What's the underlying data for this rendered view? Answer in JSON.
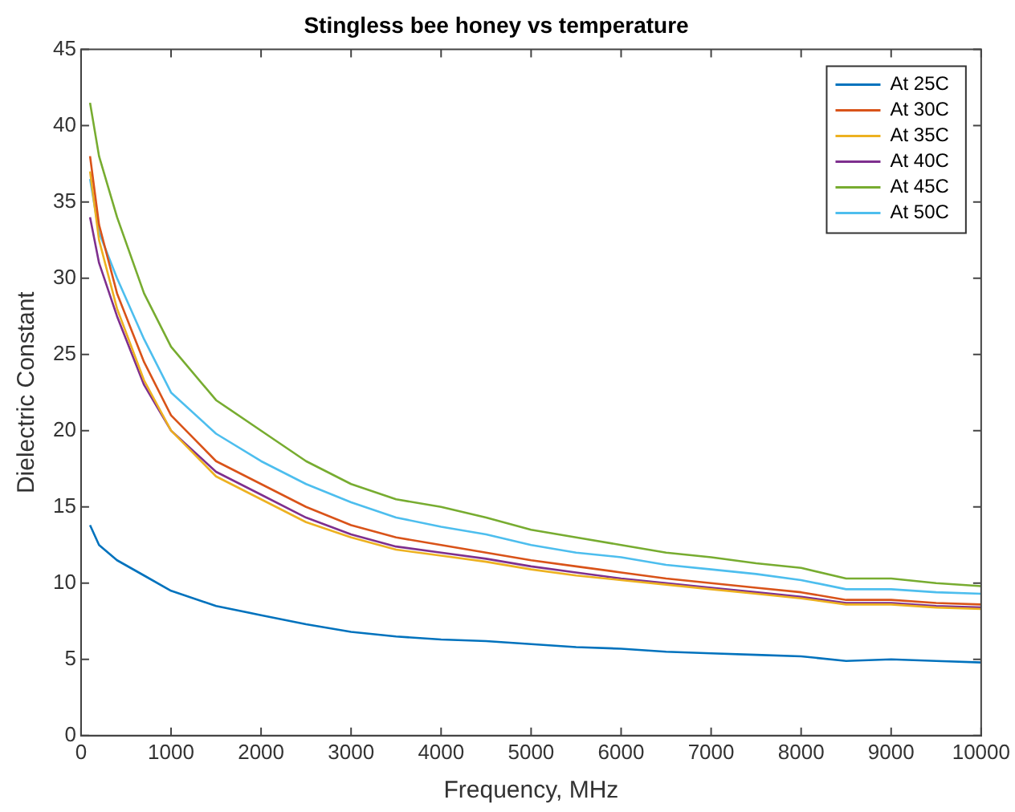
{
  "chart_data": {
    "type": "line",
    "title": "Stingless bee honey vs temperature",
    "xlabel": "Frequency, MHz",
    "ylabel": "Dielectric Constant",
    "x": [
      100,
      200,
      400,
      700,
      1000,
      1500,
      2000,
      2500,
      3000,
      3500,
      4000,
      4500,
      5000,
      5500,
      6000,
      6500,
      7000,
      7500,
      8000,
      8500,
      9000,
      9500,
      10000
    ],
    "series": [
      {
        "name": "At 25C",
        "color": "#0072bd",
        "values": [
          13.8,
          12.5,
          11.5,
          10.5,
          9.5,
          8.5,
          7.9,
          7.3,
          6.8,
          6.5,
          6.3,
          6.2,
          6.0,
          5.8,
          5.7,
          5.5,
          5.4,
          5.3,
          5.2,
          4.9,
          5.0,
          4.9,
          4.8
        ]
      },
      {
        "name": "At 30C",
        "color": "#d95319",
        "values": [
          38,
          33.5,
          29,
          24.5,
          21,
          18,
          16.5,
          15,
          13.8,
          13,
          12.5,
          12,
          11.5,
          11.1,
          10.7,
          10.3,
          10,
          9.7,
          9.4,
          8.9,
          8.9,
          8.7,
          8.6
        ]
      },
      {
        "name": "At 35C",
        "color": "#edb120",
        "values": [
          37,
          32.5,
          28,
          23.3,
          20,
          17,
          15.5,
          14,
          13,
          12.2,
          11.8,
          11.4,
          10.9,
          10.5,
          10.2,
          9.9,
          9.6,
          9.3,
          9,
          8.6,
          8.6,
          8.4,
          8.3
        ]
      },
      {
        "name": "At 40C",
        "color": "#7e2f8e",
        "values": [
          34,
          31,
          27.5,
          23,
          20,
          17.3,
          15.8,
          14.3,
          13.2,
          12.4,
          12,
          11.6,
          11.1,
          10.7,
          10.3,
          10,
          9.7,
          9.4,
          9.1,
          8.7,
          8.7,
          8.5,
          8.4
        ]
      },
      {
        "name": "At 45C",
        "color": "#77ac30",
        "values": [
          41.5,
          38,
          34,
          29,
          25.5,
          22,
          20,
          18,
          16.5,
          15.5,
          15,
          14.3,
          13.5,
          13,
          12.5,
          12,
          11.7,
          11.3,
          11,
          10.3,
          10.3,
          10,
          9.8
        ]
      },
      {
        "name": "At 50C",
        "color": "#4dbeee",
        "values": [
          36.5,
          33,
          30,
          26,
          22.5,
          19.8,
          18,
          16.5,
          15.3,
          14.3,
          13.7,
          13.2,
          12.5,
          12,
          11.7,
          11.2,
          10.9,
          10.6,
          10.2,
          9.6,
          9.6,
          9.4,
          9.3
        ]
      }
    ],
    "xlim": [
      0,
      10000
    ],
    "xticks": [
      0,
      1000,
      2000,
      3000,
      4000,
      5000,
      6000,
      7000,
      8000,
      9000,
      10000
    ],
    "ylim": [
      0,
      45
    ],
    "yticks": [
      0,
      5,
      10,
      15,
      20,
      25,
      30,
      35,
      40,
      45
    ],
    "grid": false,
    "legend": "top right",
    "marker": "none",
    "line_style": "solid"
  }
}
